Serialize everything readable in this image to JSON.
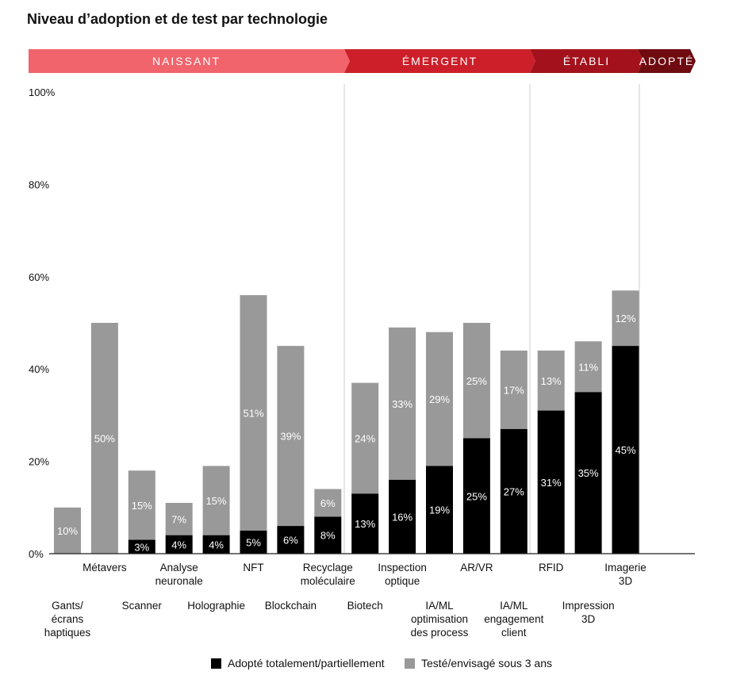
{
  "title": "Niveau d’adoption et de test par technologie",
  "colors": {
    "adopted": "#000000",
    "tested": "#999999",
    "naissant": "#f1646c",
    "emergent": "#cc1f2a",
    "etabli": "#a3121c",
    "adopte": "#6e0a10",
    "axis": "#222222",
    "separator": "#cccccc"
  },
  "stages": [
    {
      "label": "NAISSANT",
      "color_key": "naissant"
    },
    {
      "label": "ÉMERGENT",
      "color_key": "emergent"
    },
    {
      "label": "ÉTABLI",
      "color_key": "etabli"
    },
    {
      "label": "ADOPTÉ",
      "color_key": "adopte"
    }
  ],
  "chart_data": {
    "type": "bar",
    "stacked": true,
    "categories": [
      "Gants/\nécrans\nhaptiques",
      "Métavers",
      "Scanner",
      "Analyse\nneuronale",
      "Holographie",
      "NFT",
      "Blockchain",
      "Recyclage\nmoléculaire",
      "Biotech",
      "Inspection\noptique",
      "IA/ML\noptimisation\ndes process",
      "AR/VR",
      "IA/ML\nengagement\nclient",
      "RFID",
      "Impression\n3D",
      "Imagerie\n3D"
    ],
    "series": [
      {
        "name": "Adopté totalement/partiellement",
        "color_key": "adopted",
        "values": [
          0,
          0,
          3,
          4,
          4,
          5,
          6,
          8,
          13,
          16,
          19,
          25,
          27,
          31,
          35,
          45
        ],
        "labels": [
          "",
          "",
          "3%",
          "4%",
          "4%",
          "5%",
          "6%",
          "8%",
          "13%",
          "16%",
          "19%",
          "25%",
          "27%",
          "31%",
          "35%",
          "45%"
        ]
      },
      {
        "name": "Testé/envisagé sous 3 ans",
        "color_key": "tested",
        "values": [
          10,
          50,
          15,
          7,
          15,
          51,
          39,
          6,
          24,
          33,
          29,
          25,
          17,
          13,
          11,
          12
        ],
        "labels": [
          "10%",
          "50%",
          "15%",
          "7%",
          "15%",
          "51%",
          "39%",
          "6%",
          "24%",
          "33%",
          "29%",
          "25%",
          "17%",
          "13%",
          "11%",
          "12%"
        ]
      }
    ],
    "ylim": [
      0,
      100
    ],
    "yticks": [
      0,
      20,
      40,
      60,
      80,
      100
    ],
    "ytick_labels": [
      "0%",
      "20%",
      "40%",
      "60%",
      "80%",
      "100%"
    ],
    "xlabel": "",
    "ylabel": "",
    "grid": false,
    "legend_position": "bottom"
  }
}
